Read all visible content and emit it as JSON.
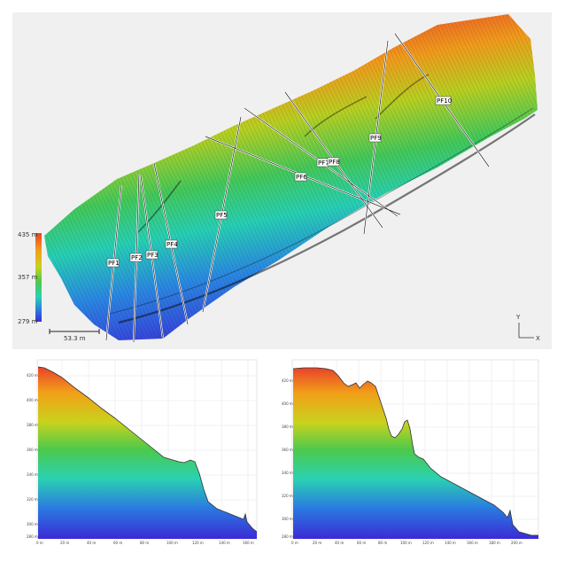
{
  "map": {
    "colorbar": {
      "max_label": "435 m",
      "mid_label": "357 m",
      "min_label": "279 m",
      "stops": [
        "#e8432a",
        "#f2a018",
        "#c9d21d",
        "#4cc94c",
        "#2ad1b2",
        "#2a7be0",
        "#3a2bd6"
      ]
    },
    "scale_label": "53.3 m",
    "axis": {
      "y": "Y",
      "x": "X"
    },
    "profiles": [
      "PF1",
      "PF2",
      "PF3",
      "PF4",
      "PF5",
      "PF6",
      "PF7",
      "PF8",
      "PF9",
      "PF10"
    ]
  },
  "profile_charts": [
    {
      "name": "left-profile",
      "y_ticks": [
        "420 m",
        "400 m",
        "380 m",
        "360 m",
        "340 m",
        "320 m",
        "300 m",
        "280 m"
      ],
      "x_ticks": [
        "0 m",
        "20 m",
        "40 m",
        "60 m",
        "80 m",
        "100 m",
        "120 m",
        "140 m",
        "160 m"
      ]
    },
    {
      "name": "right-profile",
      "y_ticks": [
        "420 m",
        "400 m",
        "380 m",
        "360 m",
        "340 m",
        "320 m",
        "300 m",
        "280 m"
      ],
      "x_ticks": [
        "0 m",
        "20 m",
        "40 m",
        "60 m",
        "80 m",
        "100 m",
        "120 m",
        "140 m",
        "160 m",
        "180 m",
        "200 m"
      ]
    }
  ]
}
